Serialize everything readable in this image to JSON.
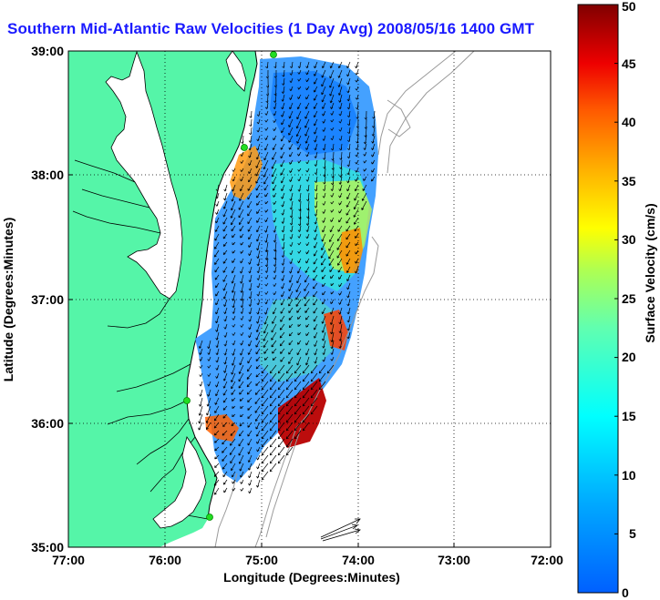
{
  "title": "Southern Mid-Atlantic Raw Velocities (1 Day Avg) 2008/05/16 1400 GMT",
  "map": {
    "xlabel": "Longitude (Degrees:Minutes)",
    "ylabel": "Latitude (Degrees:Minutes)",
    "x_ticks": [
      "77:00",
      "76:00",
      "75:00",
      "74:00",
      "73:00",
      "72:00"
    ],
    "y_ticks": [
      "39:00",
      "38:00",
      "37:00",
      "36:00",
      "35:00"
    ],
    "land_color": "#55f5a8",
    "bathymetry_color": "#9a9a9a",
    "vector_color": "#000000",
    "site_marker_color": "#22dd22"
  },
  "colorbar": {
    "label": "Surface Velocity (cm/s)",
    "ticks": [
      "50",
      "45",
      "40",
      "35",
      "30",
      "25",
      "20",
      "15",
      "10",
      "5",
      "0"
    ],
    "min": 0,
    "max": 50,
    "colormap": "jet"
  }
}
